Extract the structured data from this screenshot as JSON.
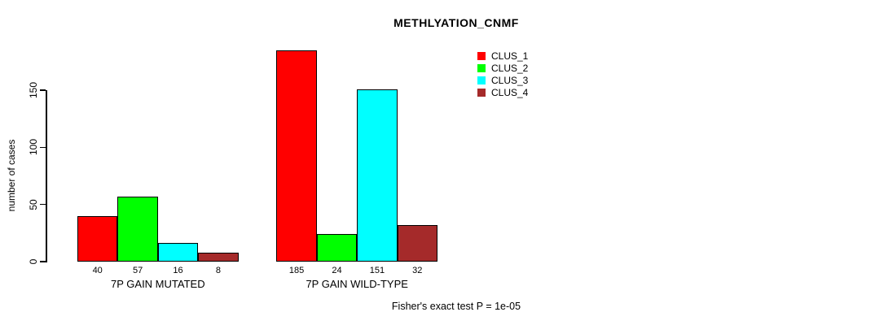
{
  "figure": {
    "title": "METHLYATION_CNMF",
    "caption": "Fisher's exact test P = 1e-05"
  },
  "chart_data": {
    "type": "bar",
    "title": "METHLYATION_CNMF",
    "xlabel": "",
    "ylabel": "number of cases",
    "categories": [
      "7P GAIN MUTATED",
      "7P GAIN WILD-TYPE"
    ],
    "series": [
      {
        "name": "CLUS_1",
        "color": "#FF0000",
        "values": [
          40,
          185
        ]
      },
      {
        "name": "CLUS_2",
        "color": "#00FF00",
        "values": [
          57,
          24
        ]
      },
      {
        "name": "CLUS_3",
        "color": "#00FFFF",
        "values": [
          16,
          151
        ]
      },
      {
        "name": "CLUS_4",
        "color": "#A52A2A",
        "values": [
          8,
          32
        ]
      }
    ],
    "y_ticks": [
      0,
      50,
      100,
      150
    ],
    "ylim": [
      0,
      190
    ],
    "grid": false,
    "legend_position": "top-right",
    "bar_value_labels_shown": true,
    "annotation": "Fisher's exact test P = 1e-05"
  }
}
